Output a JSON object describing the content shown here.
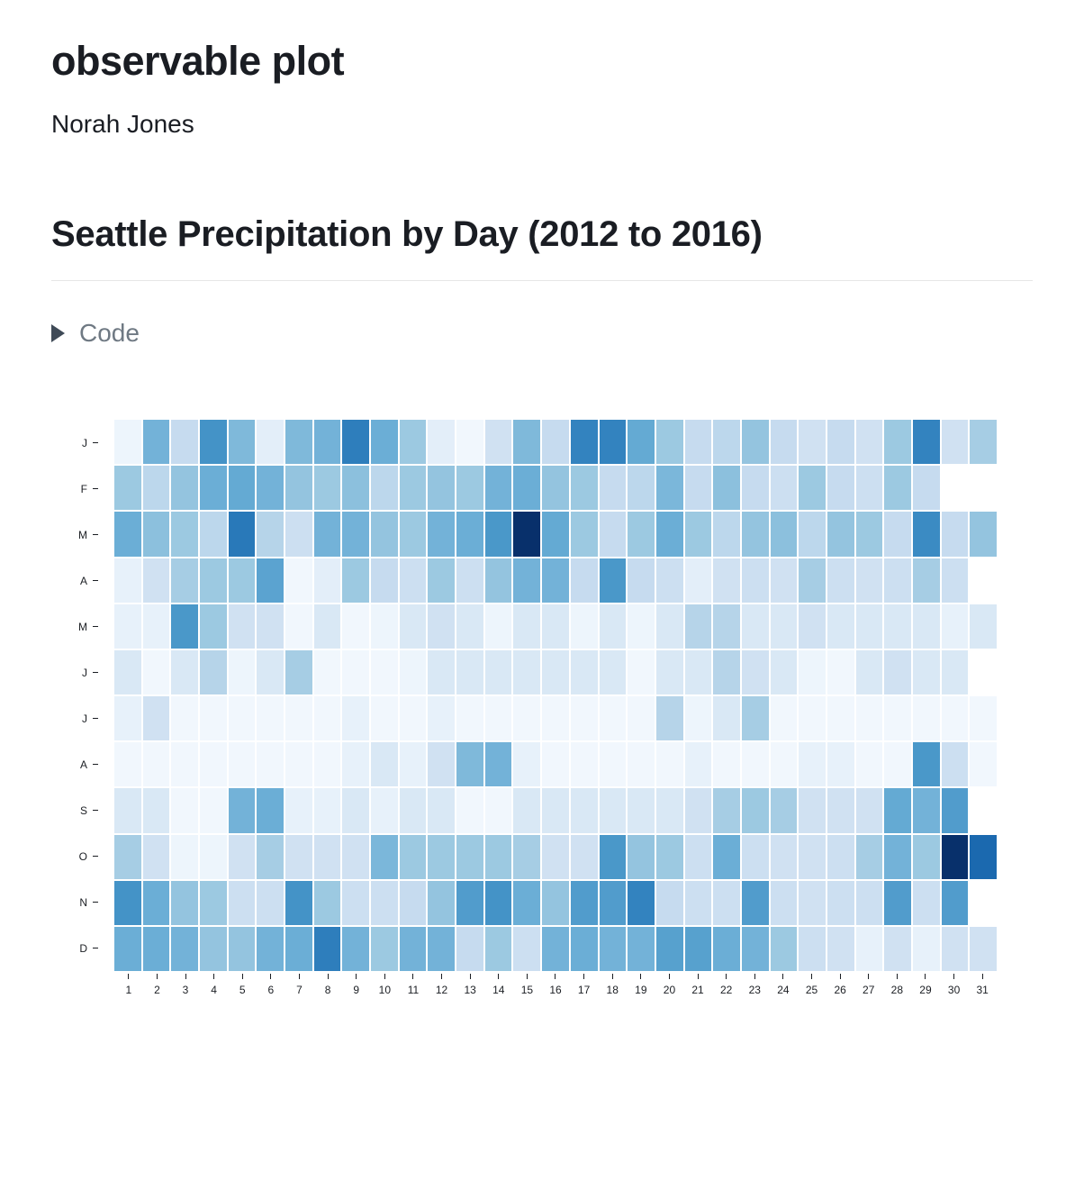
{
  "page": {
    "title": "observable plot",
    "author": "Norah Jones"
  },
  "section": {
    "heading": "Seattle Precipitation by Day (2012 to 2016)"
  },
  "code_toggle": {
    "label": "Code",
    "icon": "triangle-right",
    "state": "collapsed"
  },
  "chart_data": {
    "type": "heatmap",
    "title": "Seattle Precipitation by Day (2012 to 2016)",
    "xlabel": "",
    "ylabel": "",
    "legend_position": "none",
    "grid": false,
    "rows": [
      "J",
      "F",
      "M",
      "A",
      "M",
      "J",
      "J",
      "A",
      "S",
      "O",
      "N",
      "D"
    ],
    "columns": [
      1,
      2,
      3,
      4,
      5,
      6,
      7,
      8,
      9,
      10,
      11,
      12,
      13,
      14,
      15,
      16,
      17,
      18,
      19,
      20,
      21,
      22,
      23,
      24,
      25,
      26,
      27,
      28,
      29,
      30,
      31
    ],
    "value_description": "normalized daily precipitation intensity (0 = none, 1 = max); null = day does not exist in month",
    "value_range": [
      0,
      1
    ],
    "palette": [
      "#f7fbff",
      "#deebf7",
      "#c6dbef",
      "#9ecae1",
      "#6baed6",
      "#4292c6",
      "#2171b5",
      "#08519c",
      "#08306b"
    ],
    "values": [
      [
        0.05,
        0.48,
        0.25,
        0.62,
        0.45,
        0.1,
        0.45,
        0.48,
        0.7,
        0.5,
        0.38,
        0.1,
        0.03,
        0.2,
        0.45,
        0.25,
        0.68,
        0.68,
        0.52,
        0.38,
        0.25,
        0.28,
        0.4,
        0.25,
        0.2,
        0.25,
        0.2,
        0.38,
        0.68,
        0.2,
        0.35
      ],
      [
        0.38,
        0.28,
        0.4,
        0.5,
        0.52,
        0.48,
        0.4,
        0.38,
        0.42,
        0.28,
        0.38,
        0.4,
        0.38,
        0.48,
        0.5,
        0.4,
        0.38,
        0.25,
        0.28,
        0.46,
        0.25,
        0.42,
        0.25,
        0.22,
        0.38,
        0.25,
        0.22,
        0.38,
        0.25,
        null,
        null
      ],
      [
        0.5,
        0.42,
        0.38,
        0.28,
        0.72,
        0.3,
        0.22,
        0.48,
        0.48,
        0.4,
        0.38,
        0.48,
        0.5,
        0.6,
        1.0,
        0.52,
        0.38,
        0.25,
        0.38,
        0.5,
        0.38,
        0.28,
        0.4,
        0.42,
        0.28,
        0.4,
        0.38,
        0.25,
        0.65,
        0.25,
        0.4
      ],
      [
        0.08,
        0.2,
        0.35,
        0.38,
        0.38,
        0.55,
        0.03,
        0.1,
        0.38,
        0.25,
        0.22,
        0.38,
        0.22,
        0.4,
        0.48,
        0.48,
        0.25,
        0.6,
        0.25,
        0.22,
        0.1,
        0.2,
        0.22,
        0.2,
        0.35,
        0.22,
        0.2,
        0.22,
        0.35,
        0.22,
        null
      ],
      [
        0.08,
        0.08,
        0.6,
        0.38,
        0.2,
        0.2,
        0.03,
        0.15,
        0.03,
        0.05,
        0.15,
        0.2,
        0.15,
        0.05,
        0.15,
        0.15,
        0.05,
        0.15,
        0.05,
        0.15,
        0.3,
        0.3,
        0.15,
        0.15,
        0.2,
        0.15,
        0.15,
        0.15,
        0.15,
        0.08,
        0.15
      ],
      [
        0.15,
        0.03,
        0.15,
        0.3,
        0.05,
        0.15,
        0.35,
        0.03,
        0.03,
        0.03,
        0.05,
        0.15,
        0.15,
        0.15,
        0.15,
        0.15,
        0.15,
        0.15,
        0.03,
        0.15,
        0.15,
        0.3,
        0.2,
        0.15,
        0.05,
        0.03,
        0.15,
        0.2,
        0.15,
        0.15,
        null
      ],
      [
        0.08,
        0.2,
        0.03,
        0.03,
        0.03,
        0.03,
        0.03,
        0.03,
        0.08,
        0.03,
        0.03,
        0.08,
        0.03,
        0.03,
        0.03,
        0.03,
        0.03,
        0.03,
        0.03,
        0.3,
        0.05,
        0.15,
        0.35,
        0.03,
        0.03,
        0.03,
        0.03,
        0.03,
        0.03,
        0.03,
        0.03
      ],
      [
        0.03,
        0.03,
        0.03,
        0.03,
        0.03,
        0.03,
        0.03,
        0.03,
        0.08,
        0.15,
        0.08,
        0.2,
        0.45,
        0.48,
        0.08,
        0.03,
        0.03,
        0.03,
        0.03,
        0.03,
        0.08,
        0.03,
        0.03,
        0.03,
        0.08,
        0.08,
        0.03,
        0.03,
        0.6,
        0.22,
        0.03
      ],
      [
        0.15,
        0.15,
        0.03,
        0.03,
        0.48,
        0.5,
        0.08,
        0.08,
        0.15,
        0.08,
        0.15,
        0.15,
        0.03,
        0.03,
        0.15,
        0.15,
        0.15,
        0.15,
        0.15,
        0.15,
        0.2,
        0.35,
        0.38,
        0.35,
        0.2,
        0.2,
        0.2,
        0.52,
        0.48,
        0.58,
        null
      ],
      [
        0.35,
        0.2,
        0.05,
        0.05,
        0.2,
        0.35,
        0.2,
        0.2,
        0.2,
        0.46,
        0.38,
        0.38,
        0.38,
        0.38,
        0.35,
        0.2,
        0.2,
        0.6,
        0.4,
        0.38,
        0.22,
        0.5,
        0.22,
        0.2,
        0.2,
        0.22,
        0.35,
        0.48,
        0.38,
        1.0,
        0.78
      ],
      [
        0.62,
        0.5,
        0.4,
        0.38,
        0.22,
        0.22,
        0.62,
        0.38,
        0.22,
        0.22,
        0.25,
        0.4,
        0.58,
        0.62,
        0.5,
        0.4,
        0.58,
        0.58,
        0.68,
        0.25,
        0.22,
        0.22,
        0.58,
        0.22,
        0.2,
        0.22,
        0.22,
        0.58,
        0.22,
        0.58,
        null
      ],
      [
        0.5,
        0.5,
        0.48,
        0.4,
        0.4,
        0.48,
        0.5,
        0.7,
        0.48,
        0.38,
        0.48,
        0.48,
        0.25,
        0.38,
        0.22,
        0.48,
        0.5,
        0.48,
        0.48,
        0.56,
        0.56,
        0.5,
        0.48,
        0.38,
        0.22,
        0.2,
        0.08,
        0.2,
        0.08,
        0.2,
        0.2
      ]
    ]
  }
}
